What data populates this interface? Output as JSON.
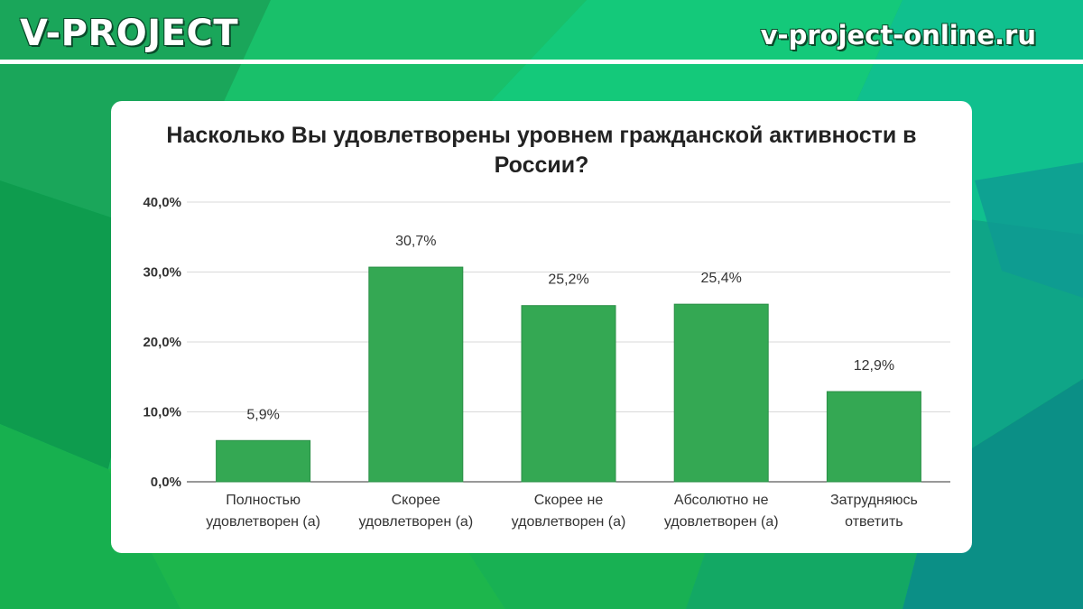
{
  "header": {
    "brand": "V-PROJECT",
    "site": "v-project-online.ru"
  },
  "colors": {
    "bar": "#34a853",
    "bar_stroke": "#2b8f47",
    "grid": "#d9d9d9",
    "text": "#333333"
  },
  "chart_data": {
    "type": "bar",
    "title_lines": [
      "Насколько Вы удовлетворены уровнем гражданской активности в",
      "России?"
    ],
    "categories": [
      [
        "Полностью",
        "удовлетворен (а)"
      ],
      [
        "Скорее",
        "удовлетворен (а)"
      ],
      [
        "Скорее не",
        "удовлетворен (а)"
      ],
      [
        "Абсолютно не",
        "удовлетворен (а)"
      ],
      [
        "Затрудняюсь",
        "ответить"
      ]
    ],
    "values": [
      5.9,
      30.7,
      25.2,
      25.4,
      12.9
    ],
    "value_labels": [
      "5,9%",
      "30,7%",
      "25,2%",
      "25,4%",
      "12,9%"
    ],
    "yticks": [
      0,
      10,
      20,
      30,
      40
    ],
    "ytick_labels": [
      "0,0%",
      "10,0%",
      "20,0%",
      "30,0%",
      "40,0%"
    ],
    "ylim": [
      0,
      40
    ],
    "grid": true
  }
}
